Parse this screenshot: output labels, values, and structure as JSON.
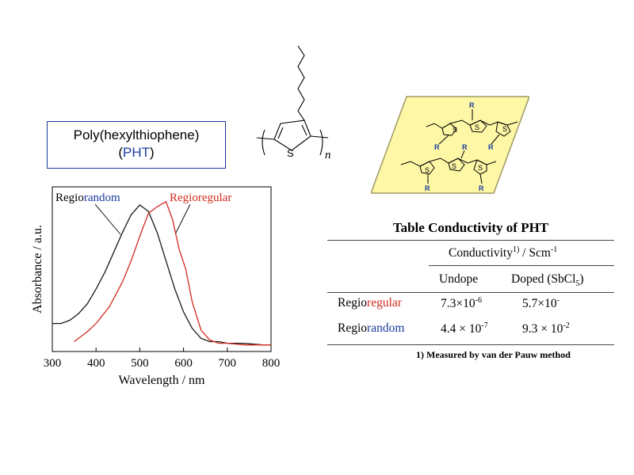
{
  "title_box": {
    "line1": "Poly(hexylthiophene)",
    "line2_open": "(",
    "line2_acronym": "PHT",
    "line2_close": ")"
  },
  "structure": {
    "sulfur": "S",
    "subscript_n": "n",
    "substituent": "R"
  },
  "chart_data": {
    "type": "line",
    "xlabel": "Wavelength / nm",
    "ylabel": "Absorbance / a.u.",
    "xlim": [
      300,
      800
    ],
    "ylim": [
      0,
      1
    ],
    "x_ticks": [
      300,
      400,
      500,
      600,
      700,
      800
    ],
    "legend_placement": "top, with pointer lines",
    "series": [
      {
        "name_part1": "Regio",
        "name_part2": "random",
        "color": "#1a1a1a",
        "label_color_part1": "#000000",
        "label_color_part2": "#1a3aa0",
        "x": [
          300,
          320,
          340,
          360,
          380,
          400,
          420,
          440,
          460,
          480,
          500,
          520,
          540,
          560,
          580,
          600,
          620,
          640,
          660,
          680,
          700,
          740,
          780,
          800
        ],
        "y": [
          0.17,
          0.17,
          0.19,
          0.23,
          0.29,
          0.38,
          0.48,
          0.6,
          0.72,
          0.83,
          0.89,
          0.85,
          0.72,
          0.55,
          0.38,
          0.24,
          0.14,
          0.08,
          0.06,
          0.06,
          0.05,
          0.05,
          0.04,
          0.04
        ]
      },
      {
        "name_part1": "Regio",
        "name_part2": "regular",
        "color": "#d22b1f",
        "label_color_part1": "#d22b1f",
        "label_color_part2": "#d22b1f",
        "x": [
          350,
          380,
          400,
          430,
          460,
          480,
          500,
          520,
          540,
          560,
          575,
          590,
          605,
          620,
          640,
          660,
          680,
          700,
          740,
          780,
          800
        ],
        "y": [
          0.06,
          0.12,
          0.17,
          0.27,
          0.42,
          0.55,
          0.7,
          0.84,
          0.88,
          0.91,
          0.8,
          0.62,
          0.5,
          0.3,
          0.13,
          0.07,
          0.05,
          0.05,
          0.04,
          0.04,
          0.04
        ]
      }
    ]
  },
  "table": {
    "title": "Table  Conductivity of PHT",
    "col_group": "Conductivity",
    "col_group_sup": "1)",
    "col_group_unit": " / Scm",
    "col_group_unit_sup": "-1",
    "col_undope": "Undope",
    "col_doped": "Doped (SbCl",
    "col_doped_sub": "5",
    "col_doped_close": ")",
    "rows": [
      {
        "label_part1": "Regio",
        "label_part2": "regular",
        "undope_base": "7.3×10",
        "undope_exp": "-6",
        "doped_base": "5.7×10",
        "doped_exp": "-"
      },
      {
        "label_part1": "Regio",
        "label_part2": "random",
        "undope_base": "4.4 × 10",
        "undope_exp": "-7",
        "doped_base": "9.3 × 10",
        "doped_exp": "-2"
      }
    ],
    "footnote": "1) Measured by van der Pauw method"
  }
}
